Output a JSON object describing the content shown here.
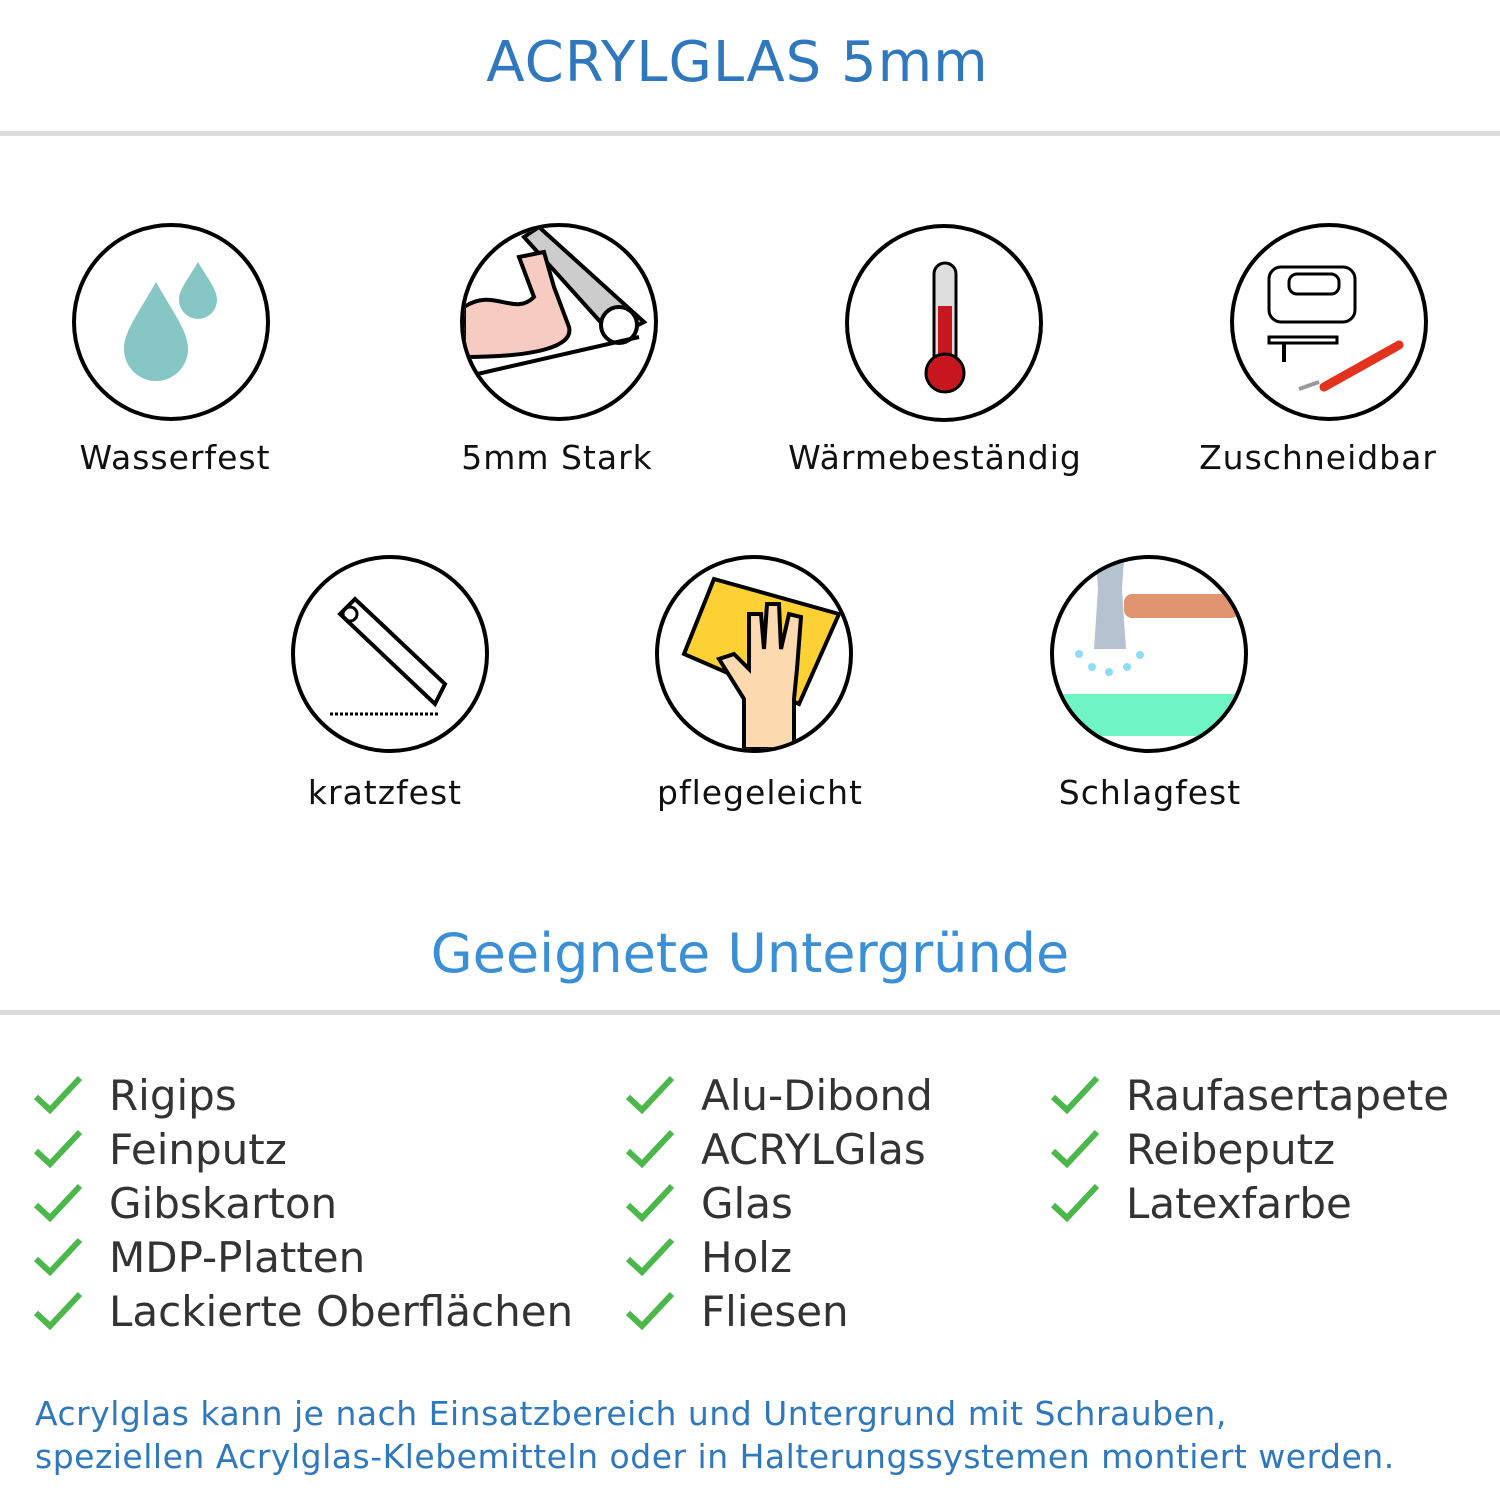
{
  "header": {
    "title": "ACRYLGLAS 5mm"
  },
  "features": [
    {
      "label": "Wasserfest",
      "icon": "water-drops-icon"
    },
    {
      "label": "5mm Stark",
      "icon": "strong-arm-icon"
    },
    {
      "label": "Wärmebeständig",
      "icon": "thermometer-icon"
    },
    {
      "label": "Zuschneidbar",
      "icon": "jigsaw-knife-icon"
    },
    {
      "label": "kratzfest",
      "icon": "cutter-knife-icon"
    },
    {
      "label": "pflegeleicht",
      "icon": "cleaning-hand-icon"
    },
    {
      "label": "Schlagfest",
      "icon": "hammer-icon"
    }
  ],
  "surfaces": {
    "title": "Geeignete Untergründe",
    "columns": [
      [
        "Rigips",
        "Feinputz",
        "Gibskarton",
        "MDP-Platten",
        "Lackierte Oberflächen"
      ],
      [
        "Alu-Dibond",
        "ACRYLGlas",
        "Glas",
        "Holz",
        "Fliesen"
      ],
      [
        "Raufasertapete",
        "Reibeputz",
        "Latexfarbe"
      ]
    ],
    "check_color": "#4cb84c"
  },
  "footer": {
    "lines": [
      "Acrylglas kann je nach Einsatzbereich und Untergrund mit Schrauben,",
      "speziellen Acrylglas-Klebemitteln oder in Halterungssystemen montiert werden."
    ]
  },
  "colors": {
    "title": "#2f78be",
    "subtitle": "#3a8fd6"
  }
}
